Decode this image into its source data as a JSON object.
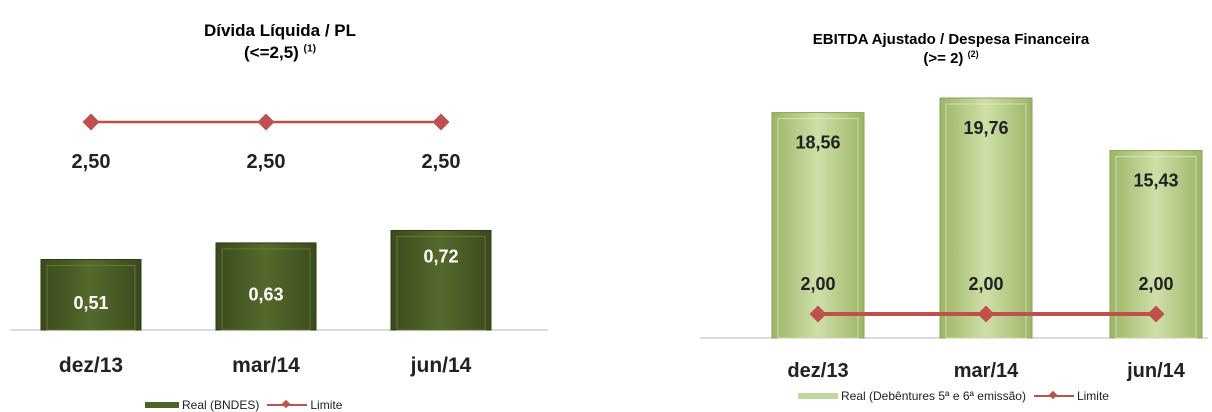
{
  "chart_data": [
    {
      "type": "bar",
      "title": "Dívida Líquida / PL",
      "subtitle": "(<=2,5)",
      "subtitle_note": "(1)",
      "categories": [
        "dez/13",
        "mar/14",
        "jun/14"
      ],
      "series": [
        {
          "name": "Real (BNDES)",
          "type": "bar",
          "values": [
            0.51,
            0.63,
            0.72
          ],
          "labels": [
            "0,51",
            "0,63",
            "0,72"
          ],
          "color": "#4f6228"
        },
        {
          "name": "Limite",
          "type": "line",
          "values": [
            2.5,
            2.5,
            2.5
          ],
          "labels": [
            "2,50",
            "2,50",
            "2,50"
          ],
          "color": "#c0504d"
        }
      ],
      "ylim": [
        0,
        3.2
      ],
      "legend_position": "bottom"
    },
    {
      "type": "bar",
      "title": "EBITDA Ajustado / Despesa Financeira",
      "subtitle": "(>= 2)",
      "subtitle_note": "(2)",
      "categories": [
        "dez/13",
        "mar/14",
        "jun/14"
      ],
      "series": [
        {
          "name": "Real (Debêntures 5ª e 6ª emissão)",
          "type": "bar",
          "values": [
            18.56,
            19.76,
            15.43
          ],
          "labels": [
            "18,56",
            "19,76",
            "15,43"
          ],
          "color": "#c3d69b"
        },
        {
          "name": "Limite",
          "type": "line",
          "values": [
            2.0,
            2.0,
            2.0
          ],
          "labels": [
            "2,00",
            "2,00",
            "2,00"
          ],
          "color": "#c0504d"
        }
      ],
      "ylim": [
        0,
        21
      ],
      "legend_position": "bottom"
    }
  ]
}
